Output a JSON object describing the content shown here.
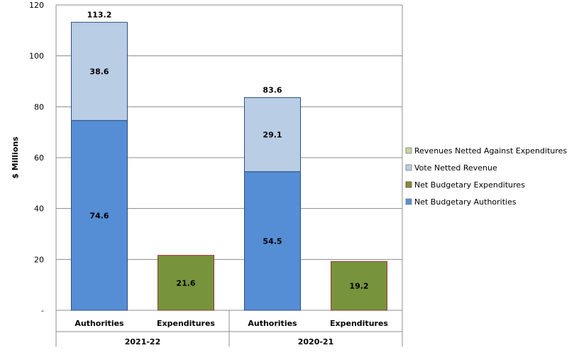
{
  "chart_data": {
    "type": "bar",
    "stacked": true,
    "title": "",
    "ylabel": "$ Millions",
    "ylim": [
      0,
      120
    ],
    "y_ticks": [
      {
        "value": 0,
        "label": "-"
      },
      {
        "value": 20,
        "label": "20"
      },
      {
        "value": 40,
        "label": "40"
      },
      {
        "value": 60,
        "label": "60"
      },
      {
        "value": 80,
        "label": "80"
      },
      {
        "value": 100,
        "label": "100"
      },
      {
        "value": 120,
        "label": "120"
      }
    ],
    "grid": true,
    "legend_position": "right",
    "groups": [
      "2021-22",
      "2020-21"
    ],
    "categories": [
      "Authorities",
      "Expenditures",
      "Authorities",
      "Expenditures"
    ],
    "category_group": [
      0,
      0,
      1,
      1
    ],
    "series": [
      {
        "name": "Net Budgetary Authorities",
        "color": "#558ed5",
        "values": [
          74.6,
          0,
          54.5,
          0
        ],
        "labels": [
          "74.6",
          "",
          "54.5",
          ""
        ]
      },
      {
        "name": "Net Budgetary Expenditures",
        "color": "#77933c",
        "border": "#953735",
        "values": [
          0,
          21.6,
          0,
          19.2
        ],
        "labels": [
          "",
          "21.6",
          "",
          "19.2"
        ]
      },
      {
        "name": "Vote Netted Revenue",
        "color": "#b9cde5",
        "values": [
          38.6,
          0,
          29.1,
          0
        ],
        "labels": [
          "38.6",
          "",
          "29.1",
          ""
        ]
      },
      {
        "name": "Revenues Netted Against Expenditures",
        "color": "#c3d69b",
        "values": [
          0,
          0,
          0,
          0
        ],
        "labels": [
          "",
          "",
          "",
          ""
        ]
      }
    ],
    "totals": [
      "113.2",
      "",
      "83.6",
      ""
    ],
    "legend_order": [
      3,
      2,
      1,
      0
    ]
  }
}
